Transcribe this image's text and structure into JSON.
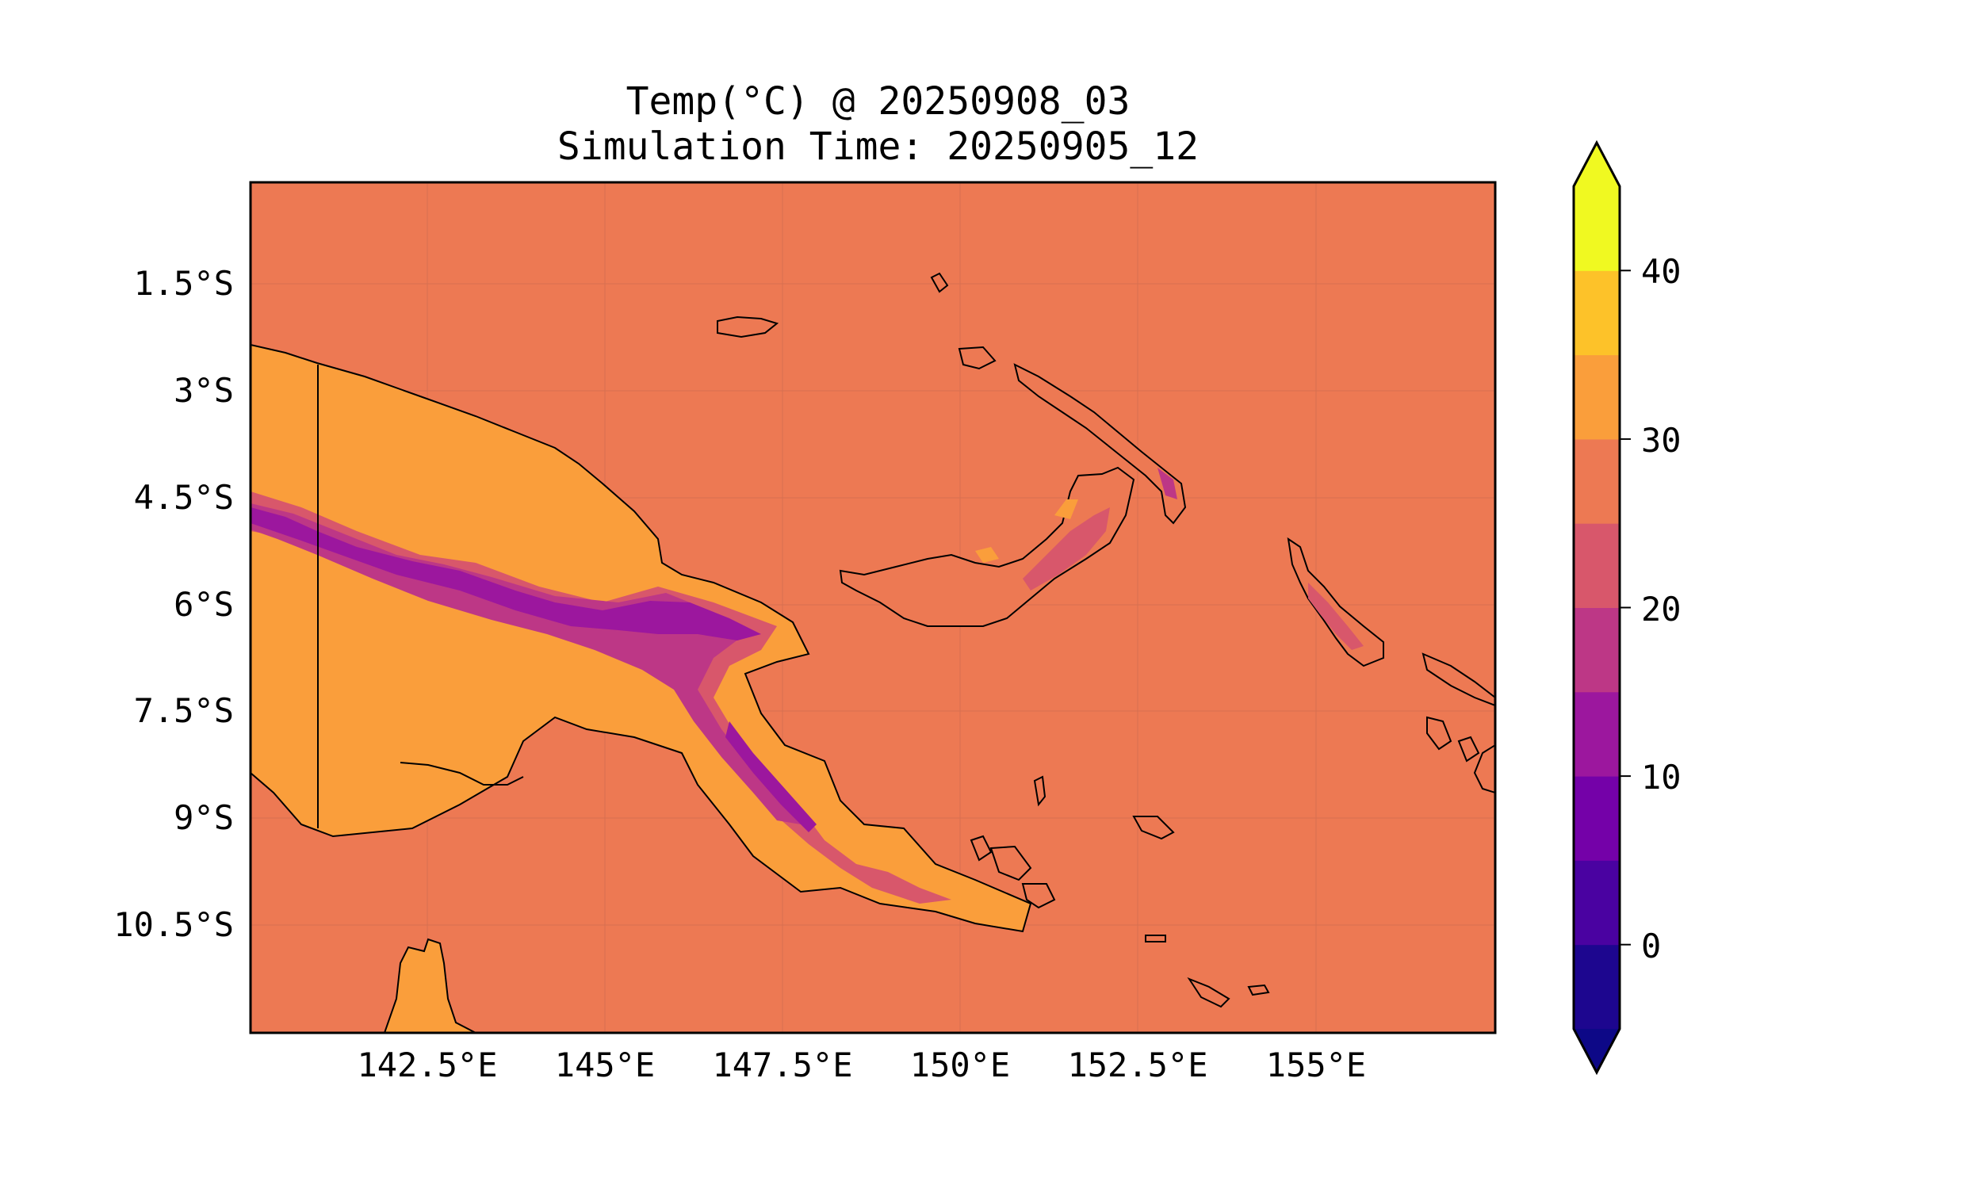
{
  "map": {
    "title": "Temp(°C) @ 20250908_03",
    "subtitle": "Simulation Time: 20250905_12",
    "lon_ticks": [
      "142.5°E",
      "145°E",
      "147.5°E",
      "150°E",
      "152.5°E",
      "155°E"
    ],
    "lat_ticks": [
      "1.5°S",
      "3°S",
      "4.5°S",
      "6°S",
      "7.5°S",
      "9°S",
      "10.5°S"
    ],
    "colorbar": {
      "ticks": [
        "0",
        "10",
        "20",
        "30",
        "40"
      ],
      "levels": [
        -5,
        0,
        5,
        10,
        15,
        20,
        25,
        30,
        35,
        40,
        45
      ],
      "colors": [
        "#1d068f",
        "#4a02a1",
        "#7401a8",
        "#9c179e",
        "#bd3786",
        "#d8576b",
        "#ed7953",
        "#fa9e3b",
        "#fdc229",
        "#f0f921"
      ],
      "under_color": "#0d0887",
      "over_color": "#f0f921"
    },
    "ocean_color": "#ed7953"
  }
}
